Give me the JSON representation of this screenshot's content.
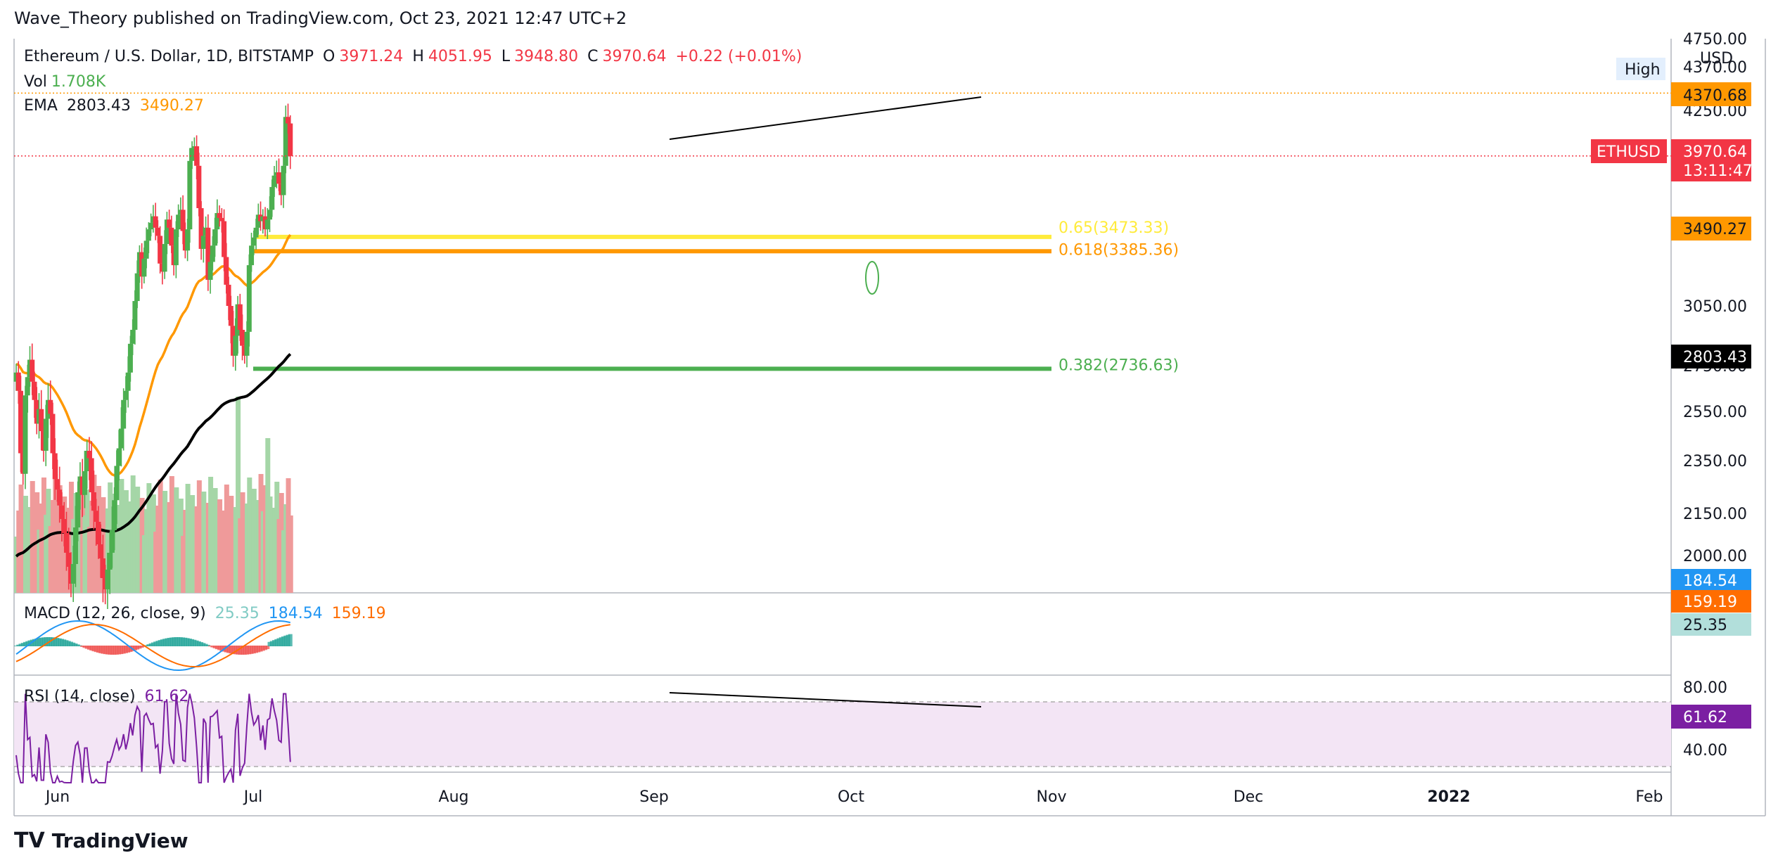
{
  "header": {
    "published": "Wave_Theory published on TradingView.com, Oct 23, 2021 12:47 UTC+2"
  },
  "legend": {
    "symbol": "Ethereum / U.S. Dollar, 1D, BITSTAMP",
    "open_label": "O",
    "open": "3971.24",
    "high_label": "H",
    "high": "4051.95",
    "low_label": "L",
    "low": "3948.80",
    "close_label": "C",
    "close": "3970.64",
    "change": "+0.22 (+0.01%)",
    "vol_label": "Vol",
    "vol": "1.708K",
    "ema_label": "EMA",
    "ema200": "2803.43",
    "ema50": "3490.27",
    "macd_label": "MACD (12, 26, close, 9)",
    "macd_hist": "25.35",
    "macd_line": "184.54",
    "macd_signal": "159.19",
    "rsi_label": "RSI (14, close)",
    "rsi": "61.62"
  },
  "colors": {
    "up": "#26a69a",
    "up_candle": "#4caf50",
    "down": "#f23645",
    "vol_up": "#a5d6a7",
    "vol_down": "#ef9a9a",
    "ema50": "#ff9800",
    "ema200": "#000000",
    "fib065": "#ffeb3b",
    "fib0618": "#ff9800",
    "fib0382": "#4caf50",
    "macd": "#2196f3",
    "signal": "#ff6d00",
    "rsi": "#7b1fa2",
    "rsi_band": "#f3e5f5"
  },
  "price_axis": {
    "unit": "USD",
    "ticks": [
      "4750.00",
      "4370.00",
      "4250.00",
      "3050.00",
      "2750.00",
      "2550.00",
      "2350.00",
      "2150.00",
      "2000.00"
    ],
    "high_label": "High",
    "high_value": "4370.68",
    "symbol_tag": "ETHUSD",
    "last_price": "3970.64",
    "countdown": "13:11:47",
    "ema50_tag": "3490.27",
    "ema200_tag": "2803.43",
    "vol_tag": "1.708K",
    "macd_tags": [
      "184.54",
      "159.19",
      "25.35"
    ],
    "rsi_ticks": [
      "80.00",
      "40.00"
    ],
    "rsi_tag": "61.62"
  },
  "time_axis": [
    "Jun",
    "Jul",
    "Aug",
    "Sep",
    "Oct",
    "Nov",
    "Dec",
    "2022",
    "Feb"
  ],
  "fib_levels": [
    {
      "label": "0.65(3473.33)",
      "price": 3473.33,
      "color": "#ffeb3b"
    },
    {
      "label": "0.618(3385.36)",
      "price": 3385.36,
      "color": "#ff9800"
    },
    {
      "label": "0.382(2736.63)",
      "price": 2736.63,
      "color": "#4caf50"
    }
  ],
  "brand": "TradingView",
  "chart_data": {
    "type": "candlestick",
    "title": "Ethereum / U.S. Dollar, 1D, BITSTAMP",
    "x_range": [
      "2021-05-27",
      "2021-10-23"
    ],
    "close_series_approx": [
      2720,
      2640,
      2380,
      2300,
      2620,
      2700,
      2780,
      2680,
      2600,
      2500,
      2560,
      2470,
      2390,
      2520,
      2600,
      2540,
      2380,
      2280,
      2240,
      2180,
      2130,
      2080,
      2010,
      1960,
      1900,
      1970,
      2100,
      2230,
      2290,
      2220,
      2310,
      2390,
      2360,
      2230,
      2160,
      2120,
      2040,
      1990,
      1920,
      1880,
      1950,
      2010,
      2090,
      2200,
      2330,
      2400,
      2480,
      2600,
      2640,
      2720,
      2860,
      2930,
      3080,
      3250,
      3380,
      3230,
      3340,
      3450,
      3520,
      3560,
      3600,
      3530,
      3480,
      3310,
      3260,
      3430,
      3580,
      3530,
      3420,
      3300,
      3520,
      3610,
      3640,
      3510,
      3390,
      3520,
      3940,
      4020,
      4030,
      3910,
      3650,
      3400,
      3480,
      3530,
      3210,
      3320,
      3420,
      3520,
      3620,
      3590,
      3570,
      3350,
      3180,
      3050,
      2950,
      2800,
      2900,
      3060,
      2930,
      2850,
      2800,
      2920,
      3300,
      3420,
      3470,
      3530,
      3610,
      3570,
      3600,
      3520,
      3580,
      3640,
      3780,
      3850,
      3870,
      3800,
      3730,
      3910,
      4210,
      4170,
      3970
    ],
    "ema50": {
      "start": 2760,
      "end": 3490.27
    },
    "ema200": {
      "start": 1990,
      "end": 2803.43
    },
    "ylim": [
      1950,
      4750
    ]
  }
}
